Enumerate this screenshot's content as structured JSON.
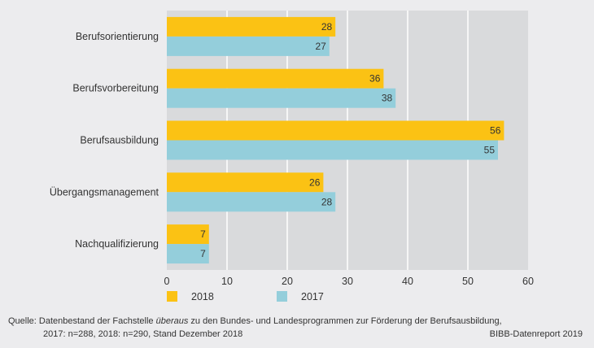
{
  "chart_data": {
    "type": "bar",
    "orientation": "horizontal",
    "title": "",
    "xlabel": "",
    "ylabel": "",
    "categories": [
      "Berufsorientierung",
      "Berufsvorbereitung",
      "Berufsausbildung",
      "Übergangsmanagement",
      "Nachqualifizierung"
    ],
    "series": [
      {
        "name": "2018",
        "color": "#fbc214",
        "values": [
          28,
          36,
          56,
          26,
          7
        ]
      },
      {
        "name": "2017",
        "color": "#94cedb",
        "values": [
          27,
          38,
          55,
          28,
          7
        ]
      }
    ],
    "xlim": [
      0,
      60
    ],
    "xticks": [
      0,
      10,
      20,
      30,
      40,
      50,
      60
    ],
    "grid": true,
    "legend_position": "bottom-left",
    "plot_background": "#d9dadc",
    "grid_color": "#ffffff"
  },
  "footer": {
    "source_prefix": "Quelle: Datenbestand der Fachstelle ",
    "source_italic": "überaus",
    "source_suffix": " zu den Bundes- und Landesprogrammen zur Förderung der Berufsausbildung,",
    "source_line2": "2017: n=288, 2018: n=290, Stand Dezember 2018",
    "credit": "BIBB-Datenreport 2019"
  }
}
